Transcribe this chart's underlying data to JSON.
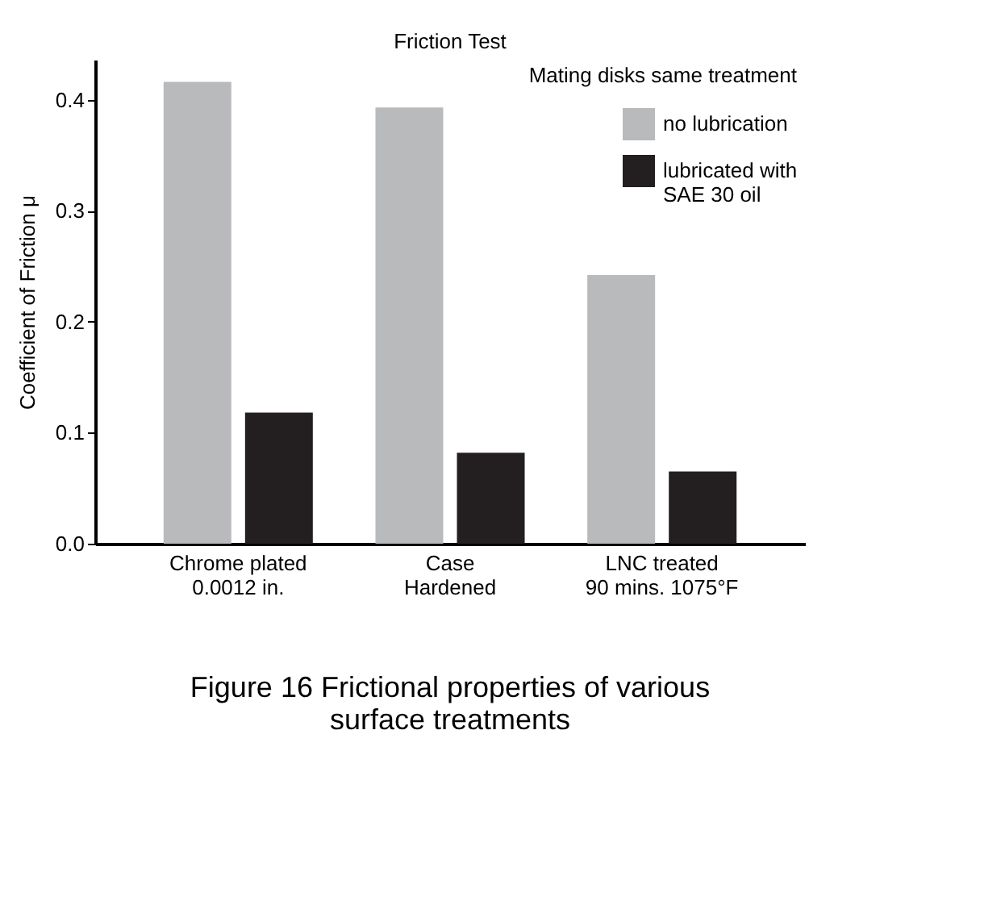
{
  "chart_data": {
    "type": "bar",
    "title": "Friction Test",
    "ylabel": "Coefficient of Friction μ",
    "categories": [
      "Chrome plated\n0.0012 in.",
      "Case\nHardened",
      "LNC treated\n90 mins. 1075°F"
    ],
    "series": [
      {
        "name": "no lubrication",
        "color": "#b9babc",
        "values": [
          0.416,
          0.393,
          0.242
        ]
      },
      {
        "name": "lubricated with\nSAE 30 oil",
        "color": "#231f20",
        "values": [
          0.118,
          0.082,
          0.065
        ]
      }
    ],
    "ylim": [
      0,
      0.436
    ],
    "yticks": [
      {
        "value": 0,
        "label": "0.0"
      },
      {
        "value": 0.1,
        "label": "0.1"
      },
      {
        "value": 0.2,
        "label": "0.2"
      },
      {
        "value": 0.3,
        "label": "0.3"
      },
      {
        "value": 0.4,
        "label": "0.4"
      }
    ],
    "legend_title": "Mating disks same treatment",
    "legend": "top right",
    "grid": false,
    "annotations": [
      "Figure 16  Frictional properties of various\nsurface treatments"
    ]
  }
}
